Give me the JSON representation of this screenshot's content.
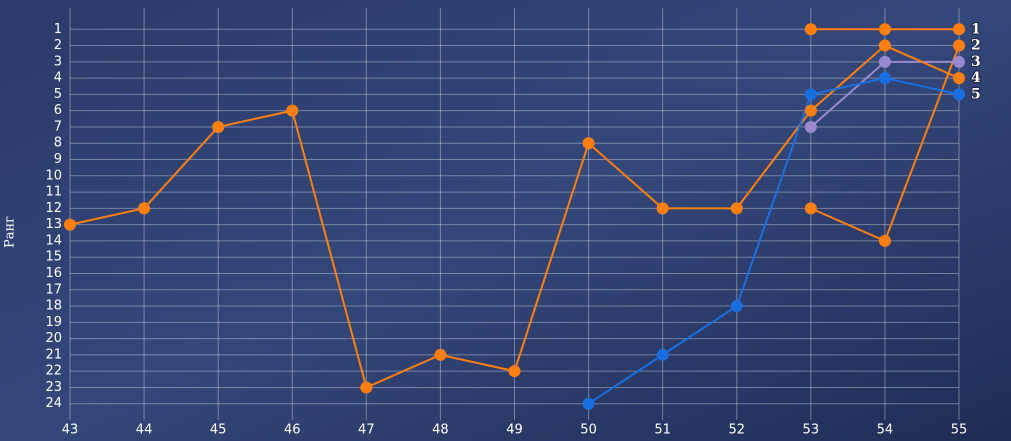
{
  "chart_data": {
    "type": "line",
    "y_label": "Ранг",
    "categories": [
      "43",
      "44",
      "45",
      "46",
      "47",
      "48",
      "49",
      "50",
      "51",
      "52",
      "53",
      "54",
      "55"
    ],
    "ylim": [
      0,
      25
    ],
    "y_reversed": true,
    "yticks": [
      1,
      2,
      3,
      4,
      5,
      6,
      7,
      8,
      9,
      10,
      11,
      12,
      13,
      14,
      15,
      16,
      17,
      18,
      19,
      20,
      21,
      22,
      23,
      24
    ],
    "grid": true,
    "series": [
      {
        "name": "1",
        "color": "#ff7f0e",
        "values": [
          null,
          null,
          null,
          null,
          null,
          null,
          null,
          null,
          null,
          null,
          1,
          1,
          1
        ]
      },
      {
        "name": "2",
        "color": "#ff7f0e",
        "values": [
          null,
          null,
          null,
          null,
          null,
          null,
          null,
          null,
          null,
          null,
          12,
          14,
          2
        ]
      },
      {
        "name": "3",
        "color": "#9a88d0",
        "values": [
          null,
          null,
          null,
          null,
          null,
          null,
          null,
          null,
          null,
          null,
          7,
          3,
          3
        ]
      },
      {
        "name": "4",
        "color": "#ff7f0e",
        "values": [
          13,
          12,
          7,
          6,
          23,
          21,
          22,
          8,
          12,
          12,
          6,
          2,
          4
        ]
      },
      {
        "name": "5",
        "color": "#1a6fe0",
        "values": [
          null,
          null,
          null,
          null,
          null,
          null,
          null,
          24,
          21,
          18,
          5,
          4,
          5
        ]
      }
    ]
  }
}
